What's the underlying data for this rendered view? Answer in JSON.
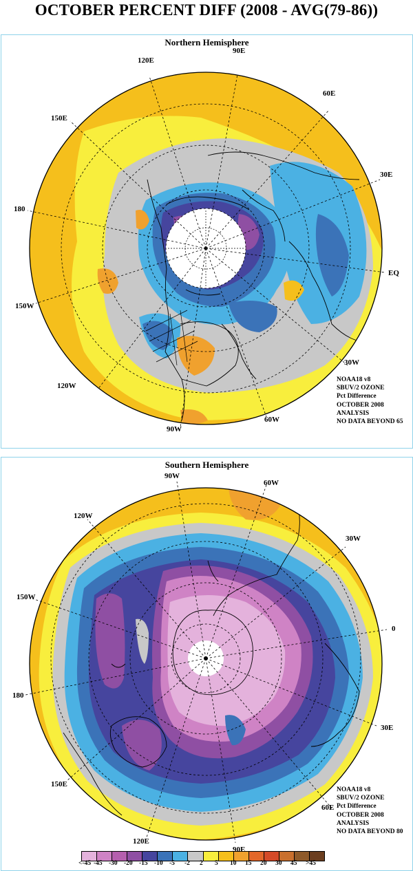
{
  "title": "OCTOBER PERCENT DIFF (2008 - AVG(79-86))",
  "panels": {
    "north": {
      "title": "Northern Hemisphere",
      "lon_labels": [
        "120E",
        "90E",
        "60E",
        "30E",
        "EQ",
        "30W",
        "60W",
        "90W",
        "120W",
        "150W",
        "180",
        "150E"
      ],
      "credits": [
        "NOAA18 v8",
        "SBUV/2 OZONE",
        "Pct Difference",
        "OCTOBER 2008",
        "ANALYSIS",
        "NO DATA BEYOND  65"
      ]
    },
    "south": {
      "title": "Southern Hemisphere",
      "lon_labels": [
        "90W",
        "60W",
        "120W",
        "30W",
        "150W",
        "0",
        "180",
        "30E",
        "150E",
        "60E",
        "120E",
        "90E"
      ],
      "credits": [
        "NOAA18 v8",
        "SBUV/2 OZONE",
        "Pct Difference",
        "OCTOBER 2008",
        "ANALYSIS",
        "NO DATA BEYOND  80"
      ]
    }
  },
  "legend": {
    "labels": [
      "<-45",
      "-45",
      "-30",
      "-20",
      "-15",
      "-10",
      "-5",
      "-2",
      "2",
      "5",
      "10",
      "15",
      "20",
      "30",
      "45",
      ">45"
    ],
    "colors": [
      "#e4b2dc",
      "#cf83c5",
      "#b55fae",
      "#8f4fa3",
      "#46459e",
      "#3b73b8",
      "#4bb1e3",
      "#c8c8c8",
      "#f8ee3d",
      "#f5bf1c",
      "#f0a12e",
      "#e3672a",
      "#d44a28",
      "#c9702e",
      "#8e5a2a",
      "#6b3e1f"
    ]
  }
}
